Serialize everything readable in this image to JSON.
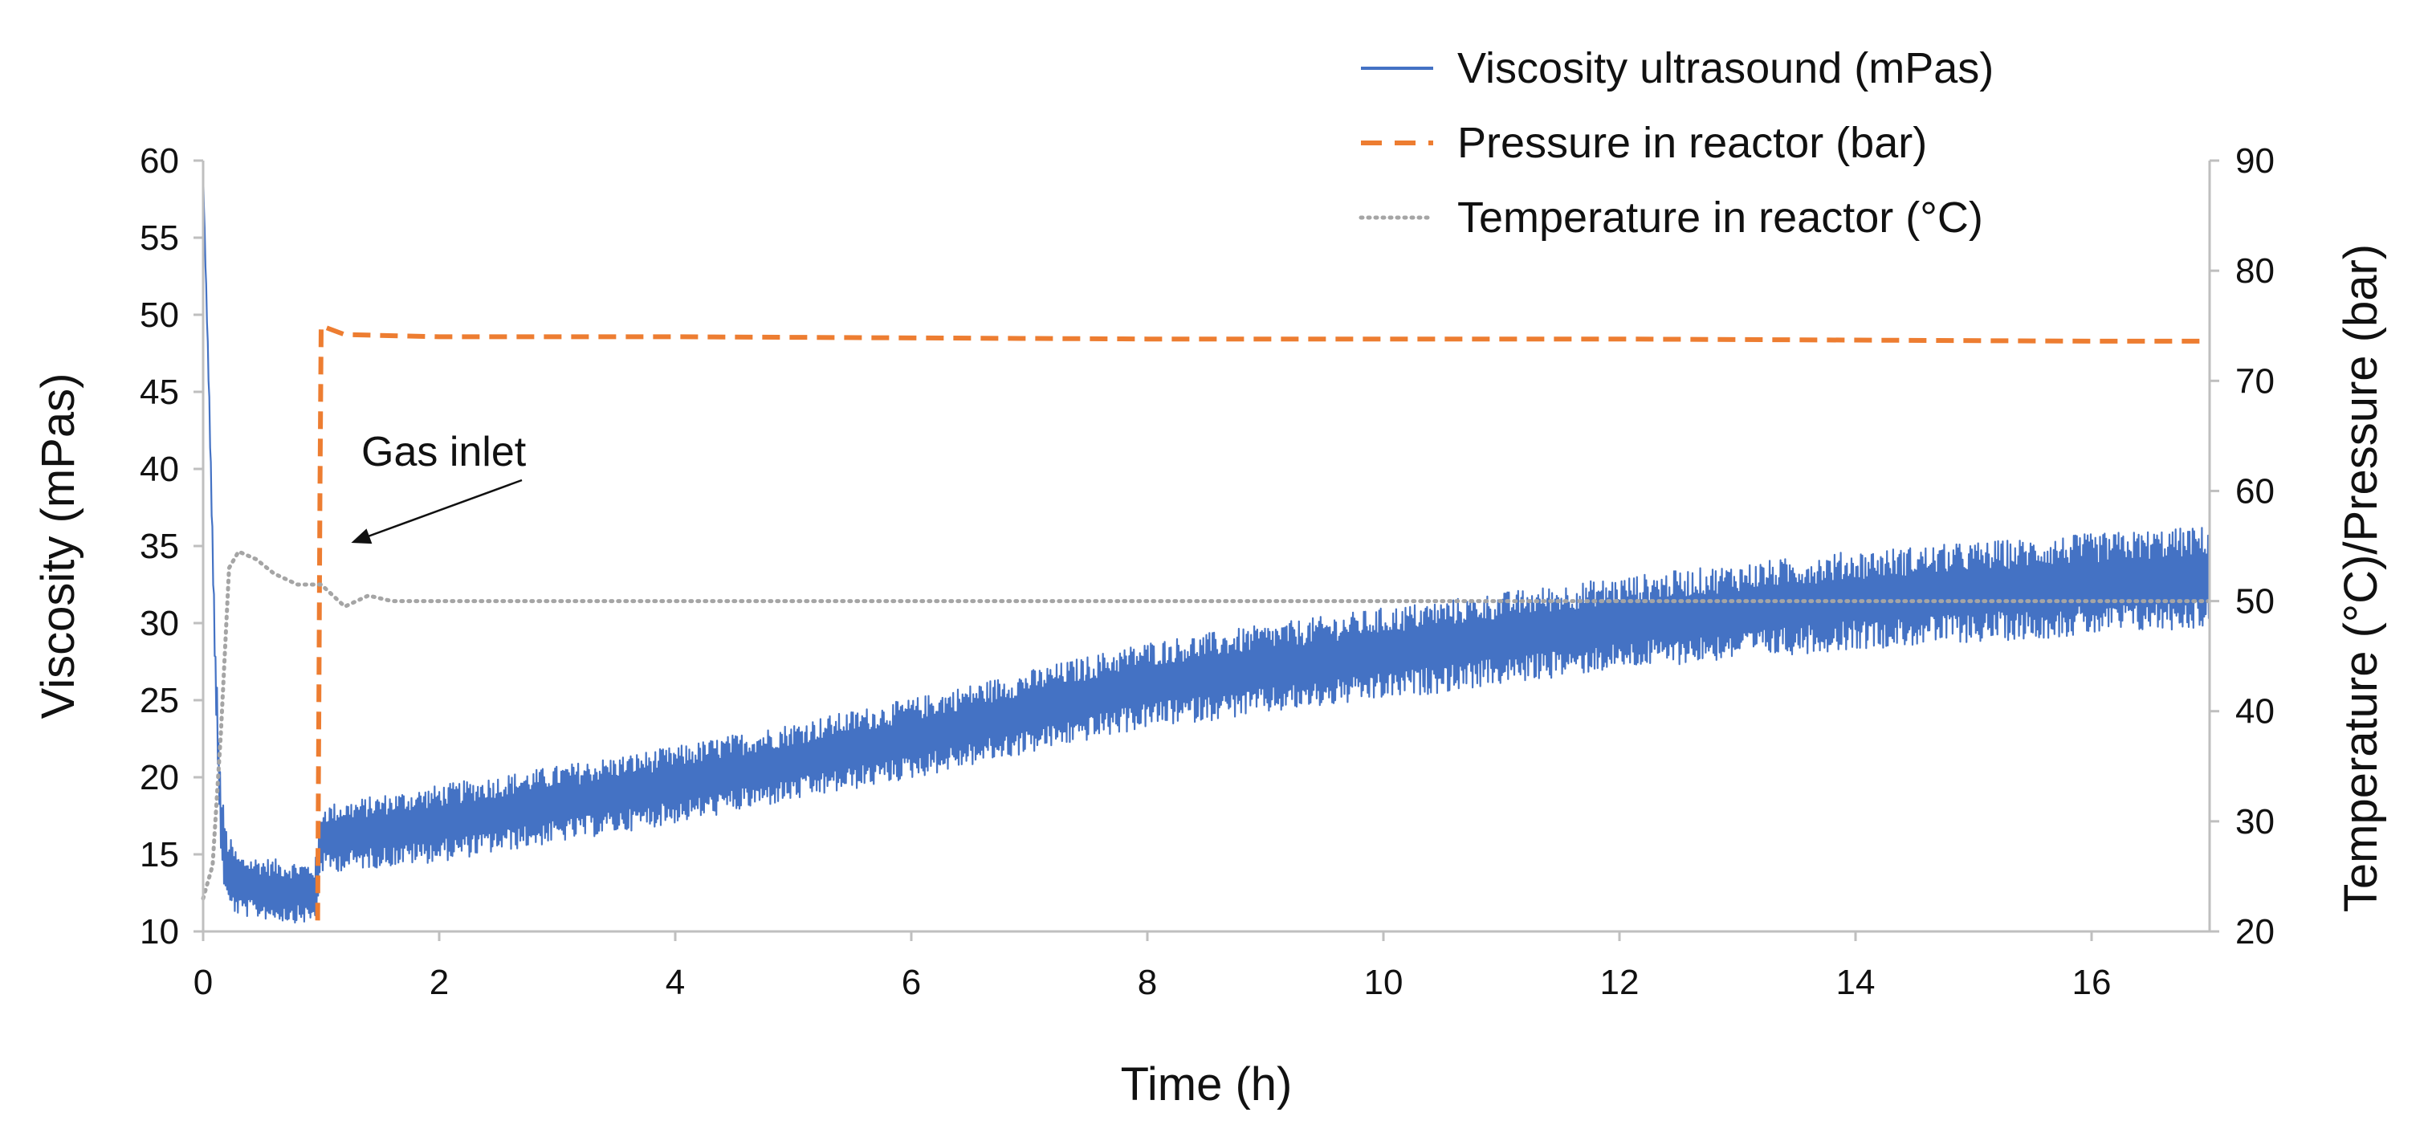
{
  "chart_data": {
    "type": "line",
    "title": "",
    "xlabel": "Time (h)",
    "ylabel": "Viscosity (mPas)",
    "ylabel_right": "Temperature (°C)/Pressure (bar)",
    "xlim": [
      0,
      17
    ],
    "ylim": [
      10,
      60
    ],
    "ylim_right": [
      20,
      90
    ],
    "x_ticks": [
      0,
      2,
      4,
      6,
      8,
      10,
      12,
      14,
      16
    ],
    "y_ticks": [
      10,
      15,
      20,
      25,
      30,
      35,
      40,
      45,
      50,
      55,
      60
    ],
    "y_ticks_right": [
      20,
      30,
      40,
      50,
      60,
      70,
      80,
      90
    ],
    "grid": false,
    "legend_position": "top-right",
    "series": [
      {
        "name": "Viscosity ultrasound (mPas)",
        "axis": "left",
        "style": "solid",
        "color": "#4472C4",
        "x": [
          0,
          0.05,
          0.1,
          0.15,
          0.2,
          0.3,
          0.5,
          0.7,
          0.95,
          1.0,
          2,
          4,
          6,
          8,
          10,
          12,
          14,
          16,
          17
        ],
        "values": [
          59,
          45,
          28,
          17,
          14,
          13,
          12.8,
          12.6,
          12.5,
          16,
          17,
          19.5,
          22.5,
          26,
          28,
          30,
          31.5,
          32.5,
          33
        ],
        "noise_band": [
          0.3,
          0.5,
          1.5,
          2.5,
          2.5,
          2.0,
          2.0,
          2.0,
          2.0,
          2.2,
          2.5,
          2.5,
          2.6,
          2.8,
          3.0,
          3.0,
          3.2,
          3.3,
          3.3
        ]
      },
      {
        "name": "Pressure in reactor (bar)",
        "axis": "right",
        "style": "dashed",
        "color": "#ED7D31",
        "x": [
          0.97,
          0.98,
          0.99,
          1.0,
          1.05,
          1.2,
          2,
          4,
          8,
          12,
          16,
          17
        ],
        "values": [
          21,
          40,
          60,
          75,
          74.8,
          74.2,
          74,
          74,
          73.8,
          73.8,
          73.6,
          73.6
        ]
      },
      {
        "name": "Temperature in reactor (°C)",
        "axis": "right",
        "style": "dotted",
        "color": "#A5A5A5",
        "x": [
          0,
          0.08,
          0.15,
          0.22,
          0.3,
          0.45,
          0.6,
          0.8,
          1.0,
          1.2,
          1.4,
          1.6,
          2,
          4,
          8,
          12,
          16,
          17
        ],
        "values": [
          23,
          26,
          38,
          53,
          54.5,
          53.8,
          52.5,
          51.5,
          51.5,
          49.5,
          50.5,
          50,
          50,
          50,
          50,
          50,
          50,
          50
        ]
      }
    ],
    "annotations": [
      {
        "text": "Gas inlet",
        "points_to": {
          "x": 1.2,
          "y_left": 35
        }
      }
    ]
  }
}
